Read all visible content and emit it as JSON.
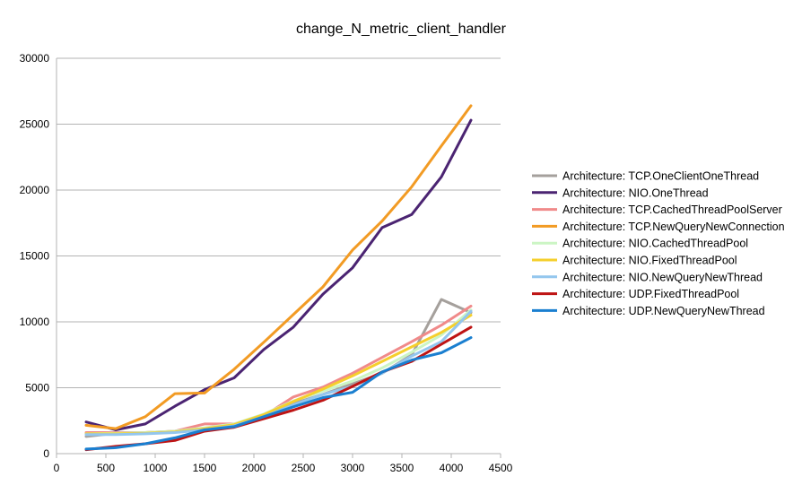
{
  "chart_data": {
    "type": "line",
    "title": "change_N_metric_client_handler",
    "xlabel": "",
    "ylabel": "",
    "xlim": [
      0,
      4500
    ],
    "ylim": [
      0,
      30000
    ],
    "x_ticks": [
      0,
      500,
      1000,
      1500,
      2000,
      2500,
      3000,
      3500,
      4000,
      4500
    ],
    "y_ticks": [
      0,
      5000,
      10000,
      15000,
      20000,
      25000,
      30000
    ],
    "grid": "horizontal",
    "legend_position": "right",
    "x": [
      300,
      600,
      900,
      1200,
      1500,
      1800,
      2100,
      2400,
      2700,
      3000,
      3300,
      3600,
      3900,
      4200
    ],
    "series": [
      {
        "name": "Architecture: TCP.OneClientOneThread",
        "color": "#a5a09c",
        "values": [
          1300,
          1550,
          1600,
          1700,
          1900,
          2150,
          2900,
          3800,
          4500,
          5300,
          6100,
          7500,
          11700,
          10700
        ]
      },
      {
        "name": "Architecture: NIO.OneThread",
        "color": "#4b2472",
        "values": [
          2400,
          1800,
          2250,
          3600,
          4850,
          5750,
          7900,
          9600,
          12100,
          14100,
          17150,
          18150,
          21000,
          25300
        ]
      },
      {
        "name": "Architecture: TCP.CachedThreadPoolServer",
        "color": "#f08a8a",
        "values": [
          1600,
          1600,
          1600,
          1700,
          2250,
          2250,
          2850,
          4300,
          5050,
          6100,
          7300,
          8500,
          9750,
          11200
        ]
      },
      {
        "name": "Architecture: TCP.NewQueryNewConnection",
        "color": "#f29b24",
        "values": [
          2150,
          1900,
          2800,
          4550,
          4600,
          6400,
          8450,
          10550,
          12650,
          15450,
          17650,
          20250,
          23350,
          26400
        ]
      },
      {
        "name": "Architecture: NIO.CachedThreadPool",
        "color": "#ccf5c4",
        "values": [
          1500,
          1550,
          1600,
          1700,
          1950,
          2250,
          3000,
          4000,
          4750,
          5500,
          6500,
          7700,
          9000,
          10900
        ]
      },
      {
        "name": "Architecture: NIO.FixedThreadPool",
        "color": "#f5cf2c",
        "values": [
          1500,
          1500,
          1550,
          1650,
          1900,
          2200,
          2950,
          3950,
          4900,
          5900,
          7000,
          8100,
          9200,
          10500
        ]
      },
      {
        "name": "Architecture: NIO.NewQueryNewThread",
        "color": "#93c6ee",
        "values": [
          1450,
          1450,
          1500,
          1600,
          1800,
          2100,
          2800,
          3700,
          4500,
          5100,
          6100,
          7400,
          8500,
          10800
        ]
      },
      {
        "name": "Architecture: UDP.FixedThreadPool",
        "color": "#be1414",
        "values": [
          300,
          550,
          750,
          1000,
          1700,
          2000,
          2650,
          3300,
          4050,
          5100,
          6200,
          7000,
          8300,
          9600
        ]
      },
      {
        "name": "Architecture: UDP.NewQueryNewThread",
        "color": "#1a7fd0",
        "values": [
          350,
          450,
          750,
          1200,
          1800,
          2050,
          2800,
          3550,
          4250,
          4650,
          6200,
          7100,
          7650,
          8800
        ]
      }
    ]
  }
}
